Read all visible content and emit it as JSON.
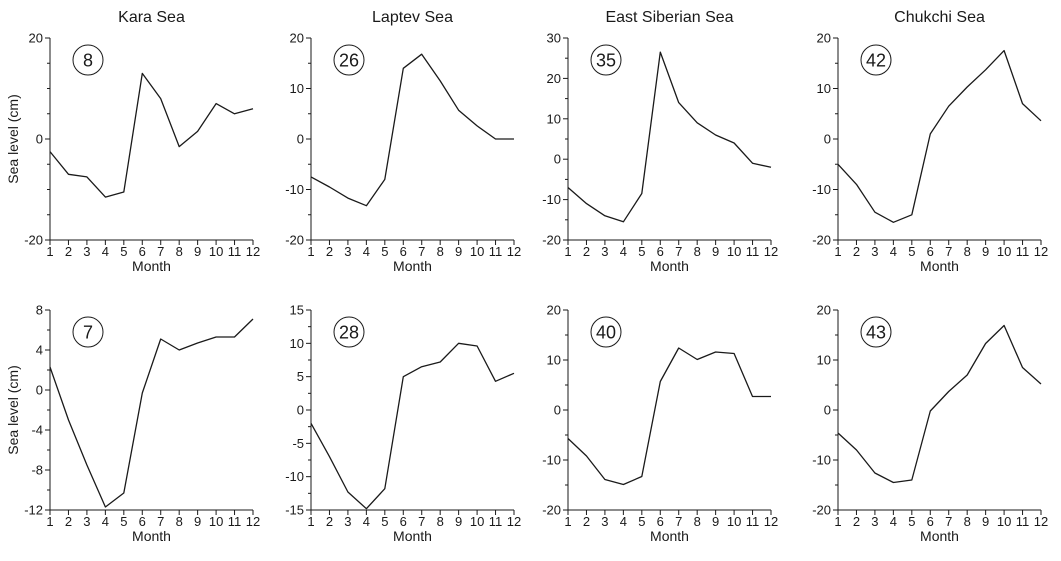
{
  "figure": {
    "row_headers": [
      "Kara Sea",
      "Laptev Sea",
      "East Siberian Sea",
      "Chukchi Sea"
    ]
  },
  "chart_data": [
    {
      "type": "line",
      "station": "8",
      "title": "Kara Sea",
      "xlabel": "Month",
      "ylabel": "Sea level (cm)",
      "x": [
        1,
        2,
        3,
        4,
        5,
        6,
        7,
        8,
        9,
        10,
        11,
        12
      ],
      "xticks": [
        "1",
        "2",
        "3",
        "4",
        "5",
        "6",
        "7",
        "8",
        "9",
        "10",
        "11",
        "12"
      ],
      "ylim": [
        -20,
        20
      ],
      "yticks": [
        -20,
        0,
        20
      ],
      "values": [
        -2.5,
        -7,
        -7.5,
        -11.5,
        -10.5,
        13,
        8,
        -1.5,
        1.5,
        7,
        5,
        6
      ]
    },
    {
      "type": "line",
      "station": "26",
      "title": "Laptev Sea",
      "xlabel": "Month",
      "ylabel": "",
      "x": [
        1,
        2,
        3,
        4,
        5,
        6,
        7,
        8,
        9,
        10,
        11,
        12
      ],
      "xticks": [
        "1",
        "2",
        "3",
        "4",
        "5",
        "6",
        "7",
        "8",
        "9",
        "10",
        "11",
        "12"
      ],
      "ylim": [
        -20,
        20
      ],
      "yticks": [
        -20,
        -10,
        0,
        10,
        20
      ],
      "values": [
        -7.5,
        -9.5,
        -11.7,
        -13.2,
        -8,
        14,
        16.8,
        11.5,
        5.7,
        2.6,
        0,
        0
      ]
    },
    {
      "type": "line",
      "station": "35",
      "title": "East Siberian Sea",
      "xlabel": "Month",
      "ylabel": "",
      "x": [
        1,
        2,
        3,
        4,
        5,
        6,
        7,
        8,
        9,
        10,
        11,
        12
      ],
      "xticks": [
        "1",
        "2",
        "3",
        "4",
        "5",
        "6",
        "7",
        "8",
        "9",
        "10",
        "11",
        "12"
      ],
      "ylim": [
        -20,
        30
      ],
      "yticks": [
        -20,
        -10,
        0,
        10,
        20,
        30
      ],
      "values": [
        -7,
        -11,
        -14,
        -15.5,
        -8.5,
        26.5,
        14,
        9,
        6,
        4,
        -1,
        -2
      ]
    },
    {
      "type": "line",
      "station": "42",
      "title": "Chukchi Sea",
      "xlabel": "Month",
      "ylabel": "",
      "x": [
        1,
        2,
        3,
        4,
        5,
        6,
        7,
        8,
        9,
        10,
        11,
        12
      ],
      "xticks": [
        "1",
        "2",
        "3",
        "4",
        "5",
        "6",
        "7",
        "8",
        "9",
        "10",
        "11",
        "12"
      ],
      "ylim": [
        -20,
        20
      ],
      "yticks": [
        -20,
        -10,
        0,
        10,
        20
      ],
      "values": [
        -5,
        -9,
        -14.5,
        -16.5,
        -15,
        1,
        6.5,
        10.3,
        13.7,
        17.5,
        7,
        3.6
      ]
    },
    {
      "type": "line",
      "station": "7",
      "title": "",
      "xlabel": "Month",
      "ylabel": "Sea level (cm)",
      "x": [
        1,
        2,
        3,
        4,
        5,
        6,
        7,
        8,
        9,
        10,
        11,
        12
      ],
      "xticks": [
        "1",
        "2",
        "3",
        "4",
        "5",
        "6",
        "7",
        "8",
        "9",
        "10",
        "11",
        "12"
      ],
      "ylim": [
        -12,
        8
      ],
      "yticks": [
        -12,
        -8,
        -4,
        0,
        4,
        8
      ],
      "values": [
        2.3,
        -3,
        -7.5,
        -11.7,
        -10.3,
        -0.3,
        5.1,
        4,
        4.7,
        5.3,
        5.3,
        7.1
      ]
    },
    {
      "type": "line",
      "station": "28",
      "title": "",
      "xlabel": "Month",
      "ylabel": "",
      "x": [
        1,
        2,
        3,
        4,
        5,
        6,
        7,
        8,
        9,
        10,
        11,
        12
      ],
      "xticks": [
        "1",
        "2",
        "3",
        "4",
        "5",
        "6",
        "7",
        "8",
        "9",
        "10",
        "11",
        "12"
      ],
      "ylim": [
        -15,
        15
      ],
      "yticks": [
        -15,
        -10,
        -5,
        0,
        5,
        10,
        15
      ],
      "values": [
        -2,
        -7,
        -12.3,
        -14.8,
        -11.8,
        5,
        6.5,
        7.2,
        10,
        9.6,
        4.3,
        5.5
      ]
    },
    {
      "type": "line",
      "station": "40",
      "title": "",
      "xlabel": "Month",
      "ylabel": "",
      "x": [
        1,
        2,
        3,
        4,
        5,
        6,
        7,
        8,
        9,
        10,
        11,
        12
      ],
      "xticks": [
        "1",
        "2",
        "3",
        "4",
        "5",
        "6",
        "7",
        "8",
        "9",
        "10",
        "11",
        "12"
      ],
      "ylim": [
        -20,
        20
      ],
      "yticks": [
        -20,
        -10,
        0,
        10,
        20
      ],
      "values": [
        -5.7,
        -9.2,
        -13.9,
        -14.9,
        -13.3,
        5.7,
        12.4,
        10.1,
        11.6,
        11.3,
        2.7,
        2.7
      ]
    },
    {
      "type": "line",
      "station": "43",
      "title": "",
      "xlabel": "Month",
      "ylabel": "",
      "x": [
        1,
        2,
        3,
        4,
        5,
        6,
        7,
        8,
        9,
        10,
        11,
        12
      ],
      "xticks": [
        "1",
        "2",
        "3",
        "4",
        "5",
        "6",
        "7",
        "8",
        "9",
        "10",
        "11",
        "12"
      ],
      "ylim": [
        -20,
        20
      ],
      "yticks": [
        -20,
        -10,
        0,
        10,
        20
      ],
      "values": [
        -4.6,
        -8,
        -12.6,
        -14.5,
        -14,
        -0.2,
        3.7,
        7,
        13.3,
        16.9,
        8.5,
        5.2
      ]
    }
  ]
}
